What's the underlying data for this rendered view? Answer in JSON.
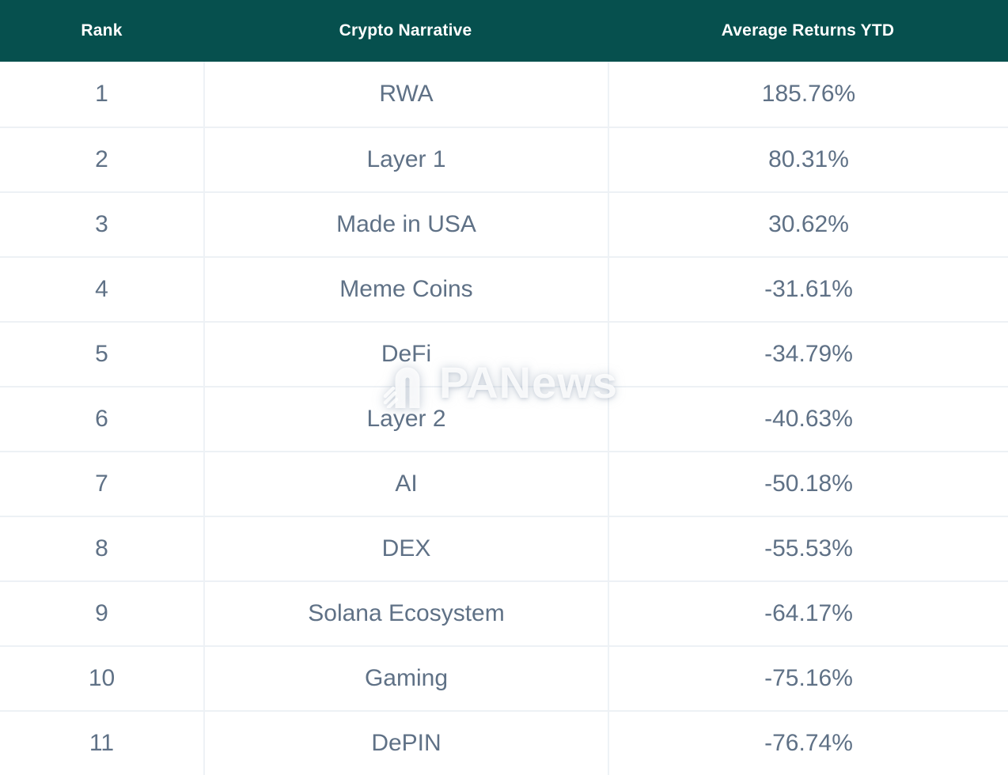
{
  "title": "Crypto Narrative Average Returns YTD",
  "table": {
    "columns": [
      "Rank",
      "Crypto Narrative",
      "Average Returns YTD"
    ],
    "rows": [
      {
        "rank": "1",
        "narrative": "RWA",
        "returns": "185.76%"
      },
      {
        "rank": "2",
        "narrative": "Layer 1",
        "returns": "80.31%"
      },
      {
        "rank": "3",
        "narrative": "Made in USA",
        "returns": "30.62%"
      },
      {
        "rank": "4",
        "narrative": "Meme Coins",
        "returns": "-31.61%"
      },
      {
        "rank": "5",
        "narrative": "DeFi",
        "returns": "-34.79%"
      },
      {
        "rank": "6",
        "narrative": "Layer 2",
        "returns": "-40.63%"
      },
      {
        "rank": "7",
        "narrative": "AI",
        "returns": "-50.18%"
      },
      {
        "rank": "8",
        "narrative": "DEX",
        "returns": "-55.53%"
      },
      {
        "rank": "9",
        "narrative": "Solana Ecosystem",
        "returns": "-64.17%"
      },
      {
        "rank": "10",
        "narrative": "Gaming",
        "returns": "-75.16%"
      },
      {
        "rank": "11",
        "narrative": "DePIN",
        "returns": "-76.74%"
      }
    ]
  },
  "watermark": {
    "text": "PANews",
    "icon": "panews-arch-logo"
  },
  "colors": {
    "header_bg": "#06504e",
    "header_text": "#ffffff",
    "body_text": "#5f7186",
    "row_divider": "#edf1f5",
    "column_divider": "#eef2f6",
    "background": "#ffffff"
  },
  "chart_data": {
    "type": "table",
    "title": "Crypto Narrative Average Returns YTD",
    "columns": [
      "Rank",
      "Crypto Narrative",
      "Average Returns YTD"
    ],
    "rows": [
      [
        1,
        "RWA",
        185.76
      ],
      [
        2,
        "Layer 1",
        80.31
      ],
      [
        3,
        "Made in USA",
        30.62
      ],
      [
        4,
        "Meme Coins",
        -31.61
      ],
      [
        5,
        "DeFi",
        -34.79
      ],
      [
        6,
        "Layer 2",
        -40.63
      ],
      [
        7,
        "AI",
        -50.18
      ],
      [
        8,
        "DEX",
        -55.53
      ],
      [
        9,
        "Solana Ecosystem",
        -64.17
      ],
      [
        10,
        "Gaming",
        -75.16
      ],
      [
        11,
        "DePIN",
        -76.74
      ]
    ],
    "units": "percent YTD"
  }
}
